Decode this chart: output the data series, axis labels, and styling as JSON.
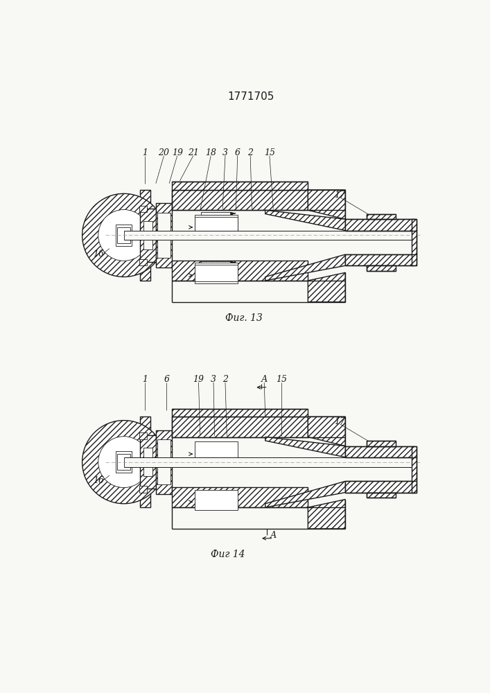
{
  "title": "1771705",
  "bg_color": "#f8f8f4",
  "fig1_caption": "Фиг. 13",
  "fig2_caption": "Фиг 14",
  "line_color": "#1a1a1a",
  "hatch_color": "#333333"
}
